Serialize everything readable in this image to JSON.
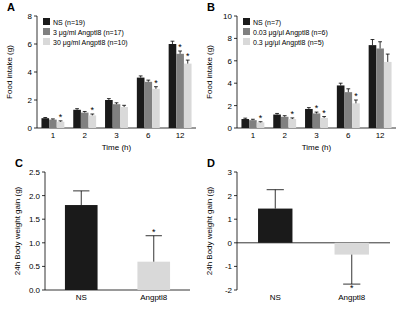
{
  "chart_data": [
    {
      "type": "bar",
      "title": "A",
      "x_label": "Time (h)",
      "y_label": "Food intake (g)",
      "categories": [
        "1",
        "2",
        "3",
        "6",
        "12"
      ],
      "series": [
        {
          "name": "NS (n=19)",
          "color": "#1a1a1a",
          "values": [
            0.7,
            1.3,
            2.0,
            3.6,
            6.0
          ],
          "errors": [
            0.05,
            0.08,
            0.1,
            0.12,
            0.2
          ],
          "significance": [
            null,
            null,
            null,
            null,
            null
          ]
        },
        {
          "name": "3 μg/ml Angptl8 (n=17)",
          "color": "#808080",
          "values": [
            0.6,
            1.1,
            1.7,
            3.3,
            5.3
          ],
          "errors": [
            0.05,
            0.08,
            0.1,
            0.12,
            0.2
          ],
          "significance": [
            null,
            null,
            null,
            null,
            "*"
          ]
        },
        {
          "name": "30 μg/ml Angptl8 (n=10)",
          "color": "#d9d9d9",
          "values": [
            0.45,
            0.9,
            1.5,
            2.8,
            4.6
          ],
          "errors": [
            0.06,
            0.1,
            0.12,
            0.15,
            0.25
          ],
          "significance": [
            "*",
            "*",
            null,
            "*",
            "*"
          ]
        }
      ],
      "ylim": [
        0,
        8
      ],
      "yticks": [
        0,
        2,
        4,
        6,
        8
      ],
      "legend": "upper left"
    },
    {
      "type": "bar",
      "title": "B",
      "x_label": "Time (h)",
      "y_label": "Food intake (g)",
      "categories": [
        "1",
        "2",
        "3",
        "6",
        "12"
      ],
      "series": [
        {
          "name": "NS (n=7)",
          "color": "#1a1a1a",
          "values": [
            0.8,
            1.2,
            1.7,
            3.8,
            7.4
          ],
          "errors": [
            0.08,
            0.1,
            0.12,
            0.2,
            0.5
          ],
          "significance": [
            null,
            null,
            null,
            null,
            null
          ]
        },
        {
          "name": "0.03 μg/μl Angptl8 (n=6)",
          "color": "#808080",
          "values": [
            0.7,
            1.0,
            1.3,
            3.2,
            7.1
          ],
          "errors": [
            0.08,
            0.1,
            0.12,
            0.3,
            0.6
          ],
          "significance": [
            null,
            null,
            "*",
            null,
            null
          ]
        },
        {
          "name": "0.3 μg/μl Angptl8 (n=5)",
          "color": "#d9d9d9",
          "values": [
            0.5,
            0.8,
            0.9,
            2.2,
            5.9
          ],
          "errors": [
            0.06,
            0.1,
            0.12,
            0.3,
            0.7
          ],
          "significance": [
            "*",
            "*",
            "*",
            "*",
            null
          ]
        }
      ],
      "ylim": [
        0,
        10
      ],
      "yticks": [
        0,
        2,
        4,
        6,
        8,
        10
      ],
      "legend": "upper left"
    },
    {
      "type": "bar",
      "title": "C",
      "y_label": "24h Body weight gain (g)",
      "categories": [
        "NS",
        "Angptl8"
      ],
      "values": [
        1.8,
        0.6
      ],
      "errors": [
        0.3,
        0.55
      ],
      "colors": [
        "#1a1a1a",
        "#d9d9d9"
      ],
      "significance": [
        null,
        "*"
      ],
      "ylim": [
        0,
        2.5
      ],
      "yticks": [
        {
          "value": 0,
          "label": "0.0"
        },
        {
          "value": 0.5,
          "label": "0.5"
        },
        {
          "value": 1,
          "label": "1.0"
        },
        {
          "value": 1.5,
          "label": "1.5"
        },
        {
          "value": 2,
          "label": "2.0"
        },
        {
          "value": 2.5,
          "label": "2.5"
        }
      ]
    },
    {
      "type": "bar",
      "title": "D",
      "y_label": "24h Body weight gain (g)",
      "categories": [
        "NS",
        "Angptl8"
      ],
      "values": [
        1.45,
        -0.5
      ],
      "errors": [
        0.8,
        1.25
      ],
      "colors": [
        "#1a1a1a",
        "#d9d9d9"
      ],
      "significance": [
        null,
        "*"
      ],
      "ylim": [
        -2,
        3
      ],
      "yticks": [
        -2,
        -1,
        0,
        1,
        2,
        3
      ]
    }
  ]
}
